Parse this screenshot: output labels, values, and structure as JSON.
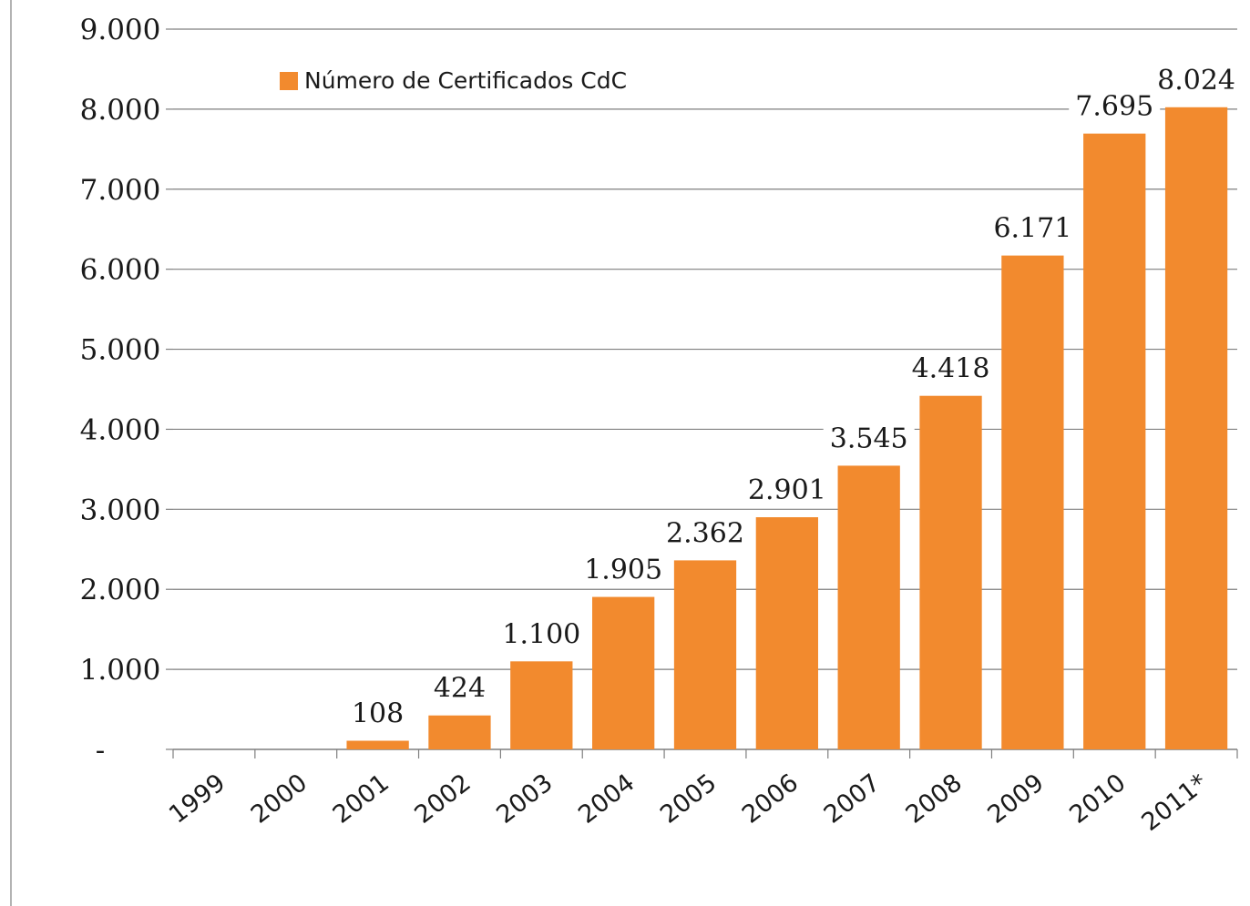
{
  "chart_data": {
    "type": "bar",
    "categories": [
      "1999",
      "2000",
      "2001",
      "2002",
      "2003",
      "2004",
      "2005",
      "2006",
      "2007",
      "2008",
      "2009",
      "2010",
      "2011*"
    ],
    "series": [
      {
        "name": "Número de Certificados CdC",
        "values": [
          0,
          0,
          108,
          424,
          1100,
          1905,
          2362,
          2901,
          3545,
          4418,
          6171,
          7695,
          8024
        ],
        "data_labels": [
          "",
          "",
          "108",
          "424",
          "1.100",
          "1.905",
          "2.362",
          "2.901",
          "3.545",
          "4.418",
          "6.171",
          "7.695",
          "8.024"
        ]
      }
    ],
    "y_ticks": [
      {
        "value": 0,
        "label": "-"
      },
      {
        "value": 1000,
        "label": "1.000"
      },
      {
        "value": 2000,
        "label": "2.000"
      },
      {
        "value": 3000,
        "label": "3.000"
      },
      {
        "value": 4000,
        "label": "4.000"
      },
      {
        "value": 5000,
        "label": "5.000"
      },
      {
        "value": 6000,
        "label": "6.000"
      },
      {
        "value": 7000,
        "label": "7.000"
      },
      {
        "value": 8000,
        "label": "8.000"
      },
      {
        "value": 9000,
        "label": "9.000"
      }
    ],
    "ylim": [
      0,
      9000
    ],
    "title": "",
    "xlabel": "",
    "ylabel": "",
    "grid": "horizontal",
    "legend_position": "top-left",
    "colors": {
      "bar": "#F28A2E",
      "grid": "#7f7f7f",
      "axis": "#7f7f7f",
      "text": "#1a1a1a"
    }
  }
}
